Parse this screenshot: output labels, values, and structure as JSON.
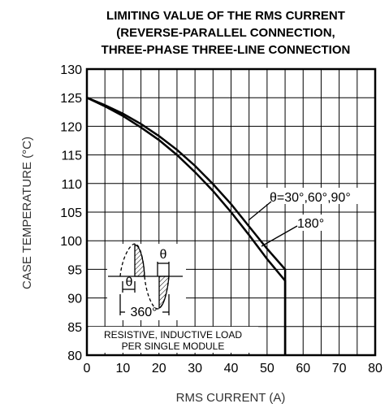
{
  "chart_data": {
    "type": "line",
    "title_lines": [
      "LIMITING VALUE OF THE RMS CURRENT",
      "(REVERSE-PARALLEL CONNECTION,",
      "THREE-PHASE THREE-LINE CONNECTION"
    ],
    "xlabel": "RMS CURRENT (A)",
    "ylabel": "CASE TEMPERATURE (°C)",
    "xlim": [
      0,
      80
    ],
    "ylim": [
      80,
      130
    ],
    "x_ticks": [
      0,
      10,
      20,
      30,
      40,
      50,
      60,
      70,
      80
    ],
    "y_ticks": [
      80,
      85,
      90,
      95,
      100,
      105,
      110,
      115,
      120,
      125,
      130
    ],
    "grid": true,
    "series": [
      {
        "name": "θ=30°,60°,90°",
        "x": [
          0,
          5,
          10,
          15,
          20,
          25,
          30,
          35,
          40,
          45,
          50,
          55,
          55
        ],
        "y": [
          125,
          123.7,
          122.2,
          120.4,
          118.3,
          115.9,
          113.1,
          109.9,
          106.4,
          102.5,
          98.6,
          95.0,
          80
        ]
      },
      {
        "name": "180°",
        "x": [
          0,
          5,
          10,
          15,
          20,
          25,
          30,
          35,
          40,
          45,
          50,
          55,
          55
        ],
        "y": [
          125,
          123.5,
          121.8,
          119.8,
          117.6,
          115.0,
          112.0,
          108.7,
          105.0,
          101.0,
          96.8,
          93.0,
          80
        ]
      }
    ],
    "annotations": {
      "series_a": "θ=30°,60°,90°",
      "series_b": "180°",
      "theta_top": "θ",
      "theta_bottom": "θ",
      "period": "360°",
      "note_line1": "RESISTIVE, INDUCTIVE LOAD",
      "note_line2": "PER SINGLE MODULE"
    }
  }
}
